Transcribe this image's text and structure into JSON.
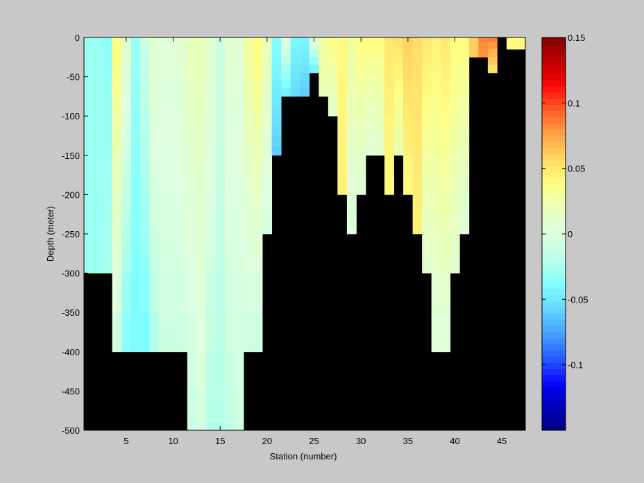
{
  "chart_data": {
    "type": "heatmap",
    "title": "",
    "xlabel": "Station (number)",
    "ylabel": "Depth (meter)",
    "xlim": [
      1,
      47
    ],
    "ylim": [
      -500,
      0
    ],
    "x_ticks": [
      5,
      10,
      15,
      20,
      25,
      30,
      35,
      40,
      45
    ],
    "y_ticks": [
      0,
      -50,
      -100,
      -150,
      -200,
      -250,
      -300,
      -350,
      -400,
      -450,
      -500
    ],
    "depth_bins": [
      -5,
      -15,
      -25,
      -35,
      -45,
      -55,
      -65,
      -75,
      -87.5,
      -100,
      -112.5,
      -125,
      -137.5,
      -150,
      -175,
      -200,
      -225,
      -250,
      -275,
      -300,
      -350,
      -400,
      -450,
      -500
    ],
    "background_color": "#000000",
    "colorbar": {
      "colormap": "jet",
      "min": -0.15,
      "max": 0.15,
      "ticks": [
        0.15,
        0.1,
        0.05,
        0,
        -0.05,
        -0.1
      ]
    },
    "stations": [
      {
        "station": 1,
        "max_depth": -300,
        "surface": -0.03,
        "deep": -0.03
      },
      {
        "station": 2,
        "max_depth": -300,
        "surface": -0.03,
        "deep": -0.03
      },
      {
        "station": 3,
        "max_depth": -300,
        "surface": -0.035,
        "deep": -0.025
      },
      {
        "station": 4,
        "max_depth": -400,
        "surface": 0.04,
        "deep": -0.005
      },
      {
        "station": 5,
        "max_depth": -400,
        "surface": 0.01,
        "deep": -0.035
      },
      {
        "station": 6,
        "max_depth": -400,
        "surface": -0.03,
        "deep": -0.04
      },
      {
        "station": 7,
        "max_depth": -400,
        "surface": -0.01,
        "deep": -0.04
      },
      {
        "station": 8,
        "max_depth": -400,
        "surface": 0.01,
        "deep": -0.02
      },
      {
        "station": 9,
        "max_depth": -400,
        "surface": 0.005,
        "deep": -0.01
      },
      {
        "station": 10,
        "max_depth": -400,
        "surface": 0.005,
        "deep": -0.01
      },
      {
        "station": 11,
        "max_depth": -400,
        "surface": 0.01,
        "deep": -0.01
      },
      {
        "station": 12,
        "max_depth": -500,
        "surface": 0.02,
        "deep": -0.01
      },
      {
        "station": 13,
        "max_depth": -500,
        "surface": 0.02,
        "deep": -0.005
      },
      {
        "station": 14,
        "max_depth": -500,
        "surface": 0.01,
        "deep": -0.02
      },
      {
        "station": 15,
        "max_depth": -500,
        "surface": -0.01,
        "deep": -0.02
      },
      {
        "station": 16,
        "max_depth": -500,
        "surface": 0.01,
        "deep": -0.015
      },
      {
        "station": 17,
        "max_depth": -500,
        "surface": 0.005,
        "deep": -0.01
      },
      {
        "station": 18,
        "max_depth": -400,
        "surface": 0.03,
        "deep": -0.01
      },
      {
        "station": 19,
        "max_depth": -400,
        "surface": 0.04,
        "deep": -0.01
      },
      {
        "station": 20,
        "max_depth": -250,
        "surface": 0.02,
        "deep": -0.005
      },
      {
        "station": 21,
        "max_depth": -150,
        "surface": -0.035,
        "deep": -0.06
      },
      {
        "station": 22,
        "max_depth": -75,
        "surface": 0.005,
        "deep": -0.045
      },
      {
        "station": 23,
        "max_depth": -75,
        "surface": -0.04,
        "deep": -0.055
      },
      {
        "station": 24,
        "max_depth": -75,
        "surface": -0.04,
        "deep": -0.06
      },
      {
        "station": 25,
        "max_depth": -50,
        "surface": 0.01,
        "deep": -0.05
      },
      {
        "station": 26,
        "max_depth": -75,
        "surface": 0.03,
        "deep": 0.02
      },
      {
        "station": 27,
        "max_depth": -100,
        "surface": 0.04,
        "deep": 0.01
      },
      {
        "station": 28,
        "max_depth": -200,
        "surface": 0.04,
        "deep": 0.045
      },
      {
        "station": 29,
        "max_depth": -250,
        "surface": 0.03,
        "deep": 0.0
      },
      {
        "station": 30,
        "max_depth": -200,
        "surface": 0.04,
        "deep": 0.005
      },
      {
        "station": 31,
        "max_depth": -150,
        "surface": 0.04,
        "deep": 0.005
      },
      {
        "station": 32,
        "max_depth": -150,
        "surface": 0.04,
        "deep": 0.01
      },
      {
        "station": 33,
        "max_depth": -200,
        "surface": 0.05,
        "deep": 0.04
      },
      {
        "station": 34,
        "max_depth": -150,
        "surface": 0.055,
        "deep": 0.02
      },
      {
        "station": 35,
        "max_depth": -200,
        "surface": 0.06,
        "deep": 0.04
      },
      {
        "station": 36,
        "max_depth": -250,
        "surface": 0.055,
        "deep": 0.045
      },
      {
        "station": 37,
        "max_depth": -300,
        "surface": 0.05,
        "deep": 0.01
      },
      {
        "station": 38,
        "max_depth": -400,
        "surface": 0.045,
        "deep": 0.003
      },
      {
        "station": 39,
        "max_depth": -400,
        "surface": 0.05,
        "deep": 0.005
      },
      {
        "station": 40,
        "max_depth": -300,
        "surface": 0.04,
        "deep": 0.01
      },
      {
        "station": 41,
        "max_depth": -250,
        "surface": 0.04,
        "deep": 0.005
      },
      {
        "station": 42,
        "max_depth": -25,
        "surface": 0.06,
        "deep": 0.06
      },
      {
        "station": 43,
        "max_depth": -25,
        "surface": 0.085,
        "deep": 0.08
      },
      {
        "station": 44,
        "max_depth": -50,
        "surface": 0.09,
        "deep": 0.05
      },
      {
        "station": 45,
        "max_depth": 0,
        "surface": 0.0,
        "deep": 0.0
      },
      {
        "station": 46,
        "max_depth": -15,
        "surface": 0.04,
        "deep": 0.04
      },
      {
        "station": 47,
        "max_depth": -15,
        "surface": 0.04,
        "deep": 0.04
      }
    ]
  }
}
